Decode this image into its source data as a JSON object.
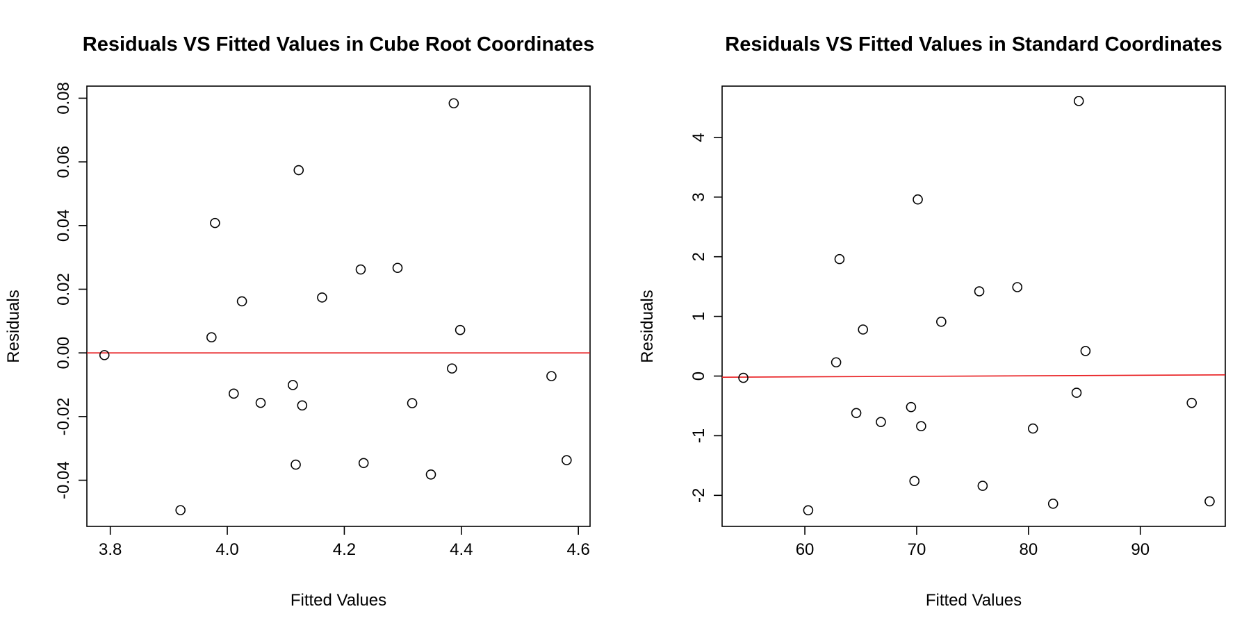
{
  "chart_data": [
    {
      "type": "scatter",
      "title": "Residuals VS Fitted Values in Cube Root Coordinates",
      "xlabel": "Fitted Values",
      "ylabel": "Residuals",
      "xlim": [
        3.76,
        4.62
      ],
      "ylim": [
        -0.0545,
        0.0838
      ],
      "xticks": [
        3.8,
        4.0,
        4.2,
        4.4,
        4.6
      ],
      "xtick_labels": [
        "3.8",
        "4.0",
        "4.2",
        "4.4",
        "4.6"
      ],
      "yticks": [
        -0.04,
        -0.02,
        0.0,
        0.02,
        0.04,
        0.06,
        0.08
      ],
      "ytick_labels": [
        "-0.04",
        "-0.02",
        "0.00",
        "0.02",
        "0.04",
        "0.06",
        "0.08"
      ],
      "reference_line": {
        "y0": 0.0,
        "y1": 0.0,
        "color": "#e8191c"
      },
      "grid": false,
      "points": [
        {
          "x": 3.79,
          "y": -0.0007
        },
        {
          "x": 3.92,
          "y": -0.0494
        },
        {
          "x": 3.973,
          "y": 0.0049
        },
        {
          "x": 3.979,
          "y": 0.0408
        },
        {
          "x": 4.011,
          "y": -0.0128
        },
        {
          "x": 4.025,
          "y": 0.0162
        },
        {
          "x": 4.057,
          "y": -0.0157
        },
        {
          "x": 4.112,
          "y": -0.0101
        },
        {
          "x": 4.117,
          "y": -0.0351
        },
        {
          "x": 4.122,
          "y": 0.0574
        },
        {
          "x": 4.128,
          "y": -0.0165
        },
        {
          "x": 4.162,
          "y": 0.0174
        },
        {
          "x": 4.228,
          "y": 0.0262
        },
        {
          "x": 4.233,
          "y": -0.0346
        },
        {
          "x": 4.291,
          "y": 0.0267
        },
        {
          "x": 4.316,
          "y": -0.0158
        },
        {
          "x": 4.348,
          "y": -0.0382
        },
        {
          "x": 4.384,
          "y": -0.0049
        },
        {
          "x": 4.387,
          "y": 0.0784
        },
        {
          "x": 4.398,
          "y": 0.0072
        },
        {
          "x": 4.554,
          "y": -0.0073
        },
        {
          "x": 4.58,
          "y": -0.0337
        }
      ]
    },
    {
      "type": "scatter",
      "title": "Residuals VS Fitted Values in Standard Coordinates",
      "xlabel": "Fitted Values",
      "ylabel": "Residuals",
      "xlim": [
        52.6,
        97.6
      ],
      "ylim": [
        -2.52,
        4.86
      ],
      "xticks": [
        60,
        70,
        80,
        90
      ],
      "xtick_labels": [
        "60",
        "70",
        "80",
        "90"
      ],
      "yticks": [
        -2,
        -1,
        0,
        1,
        2,
        3,
        4
      ],
      "ytick_labels": [
        "-2",
        "-1",
        "0",
        "1",
        "2",
        "3",
        "4"
      ],
      "reference_line": {
        "y0": -0.02,
        "y1": 0.02,
        "color": "#e8191c"
      },
      "grid": false,
      "points": [
        {
          "x": 54.5,
          "y": -0.03
        },
        {
          "x": 60.3,
          "y": -2.25
        },
        {
          "x": 62.8,
          "y": 0.23
        },
        {
          "x": 63.1,
          "y": 1.96
        },
        {
          "x": 64.6,
          "y": -0.62
        },
        {
          "x": 65.2,
          "y": 0.78
        },
        {
          "x": 66.8,
          "y": -0.77
        },
        {
          "x": 69.5,
          "y": -0.52
        },
        {
          "x": 69.8,
          "y": -1.76
        },
        {
          "x": 70.1,
          "y": 2.96
        },
        {
          "x": 70.4,
          "y": -0.84
        },
        {
          "x": 72.2,
          "y": 0.91
        },
        {
          "x": 75.6,
          "y": 1.42
        },
        {
          "x": 75.9,
          "y": -1.84
        },
        {
          "x": 79.0,
          "y": 1.49
        },
        {
          "x": 80.4,
          "y": -0.88
        },
        {
          "x": 82.2,
          "y": -2.14
        },
        {
          "x": 84.3,
          "y": -0.28
        },
        {
          "x": 84.5,
          "y": 4.61
        },
        {
          "x": 85.1,
          "y": 0.42
        },
        {
          "x": 94.6,
          "y": -0.45
        },
        {
          "x": 96.2,
          "y": -2.1
        }
      ]
    }
  ]
}
